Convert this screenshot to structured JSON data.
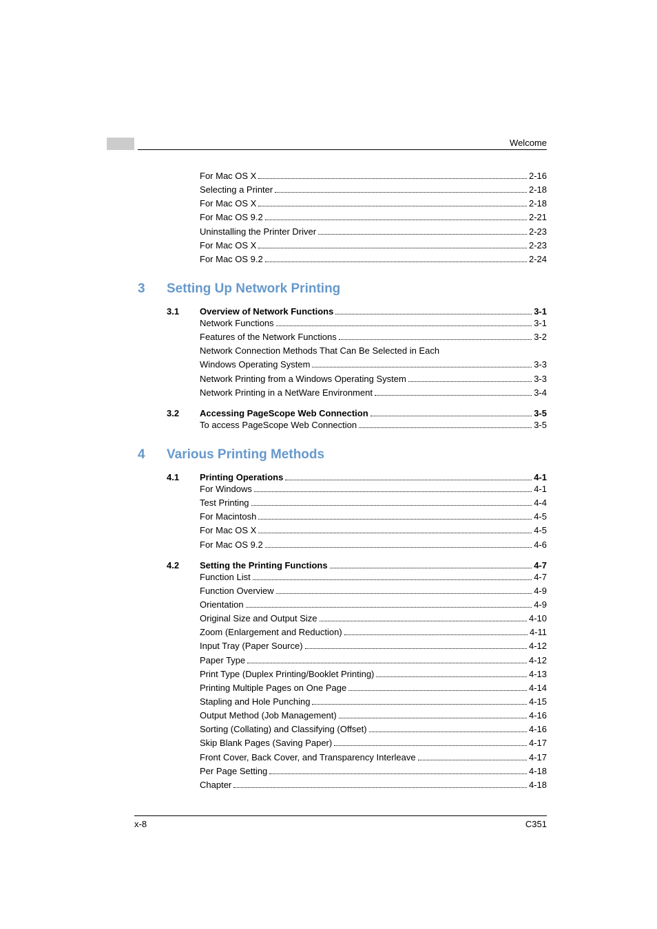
{
  "header": {
    "text": "Welcome"
  },
  "pre_entries": [
    {
      "label": "For Mac OS X",
      "page": "2-16"
    },
    {
      "label": "Selecting a Printer",
      "page": "2-18"
    },
    {
      "label": "For Mac OS X",
      "page": "2-18"
    },
    {
      "label": "For Mac OS 9.2",
      "page": "2-21"
    },
    {
      "label": "Uninstalling the Printer Driver",
      "page": "2-23"
    },
    {
      "label": "For Mac OS X",
      "page": "2-23"
    },
    {
      "label": "For Mac OS 9.2",
      "page": "2-24"
    }
  ],
  "chapters": [
    {
      "num": "3",
      "title": "Setting Up Network Printing",
      "sections": [
        {
          "num": "3.1",
          "label": "Overview of Network Functions",
          "page": "3-1",
          "entries": [
            {
              "label": "Network Functions",
              "page": "3-1"
            },
            {
              "label": "Features of the Network Functions",
              "page": "3-2"
            },
            {
              "label": "Network Connection Methods That Can Be Selected in Each",
              "nowrap": true
            },
            {
              "label": "Windows Operating System",
              "page": "3-3"
            },
            {
              "label": "Network Printing from a Windows Operating System",
              "page": "3-3"
            },
            {
              "label": "Network Printing in a NetWare Environment",
              "page": "3-4"
            }
          ]
        },
        {
          "num": "3.2",
          "label": "Accessing PageScope Web Connection",
          "page": "3-5",
          "entries": [
            {
              "label": "To access PageScope Web Connection",
              "page": "3-5"
            }
          ]
        }
      ]
    },
    {
      "num": "4",
      "title": "Various Printing Methods",
      "sections": [
        {
          "num": "4.1",
          "label": "Printing Operations",
          "page": "4-1",
          "entries": [
            {
              "label": "For Windows",
              "page": "4-1"
            },
            {
              "label": "Test Printing",
              "page": "4-4"
            },
            {
              "label": "For Macintosh",
              "page": "4-5"
            },
            {
              "label": "For Mac OS X",
              "page": "4-5"
            },
            {
              "label": "For Mac OS 9.2",
              "page": "4-6"
            }
          ]
        },
        {
          "num": "4.2",
          "label": "Setting the Printing Functions",
          "page": "4-7",
          "entries": [
            {
              "label": "Function List",
              "page": "4-7"
            },
            {
              "label": "Function Overview",
              "page": "4-9"
            },
            {
              "label": "Orientation",
              "page": "4-9"
            },
            {
              "label": "Original Size and Output Size",
              "page": "4-10"
            },
            {
              "label": "Zoom (Enlargement and Reduction)",
              "page": "4-11"
            },
            {
              "label": "Input Tray (Paper Source)",
              "page": "4-12"
            },
            {
              "label": "Paper Type",
              "page": "4-12"
            },
            {
              "label": "Print Type (Duplex Printing/Booklet Printing)",
              "page": "4-13"
            },
            {
              "label": "Printing Multiple Pages on One Page",
              "page": "4-14"
            },
            {
              "label": "Stapling and Hole Punching",
              "page": "4-15"
            },
            {
              "label": "Output Method (Job Management)",
              "page": "4-16"
            },
            {
              "label": "Sorting (Collating) and Classifying (Offset)",
              "page": "4-16"
            },
            {
              "label": "Skip Blank Pages (Saving Paper)",
              "page": "4-17"
            },
            {
              "label": "Front Cover, Back Cover, and Transparency Interleave",
              "page": "4-17"
            },
            {
              "label": "Per Page Setting",
              "page": "4-18"
            },
            {
              "label": "Chapter",
              "page": "4-18"
            }
          ]
        }
      ]
    }
  ],
  "footer": {
    "left": "x-8",
    "right": "C351"
  }
}
